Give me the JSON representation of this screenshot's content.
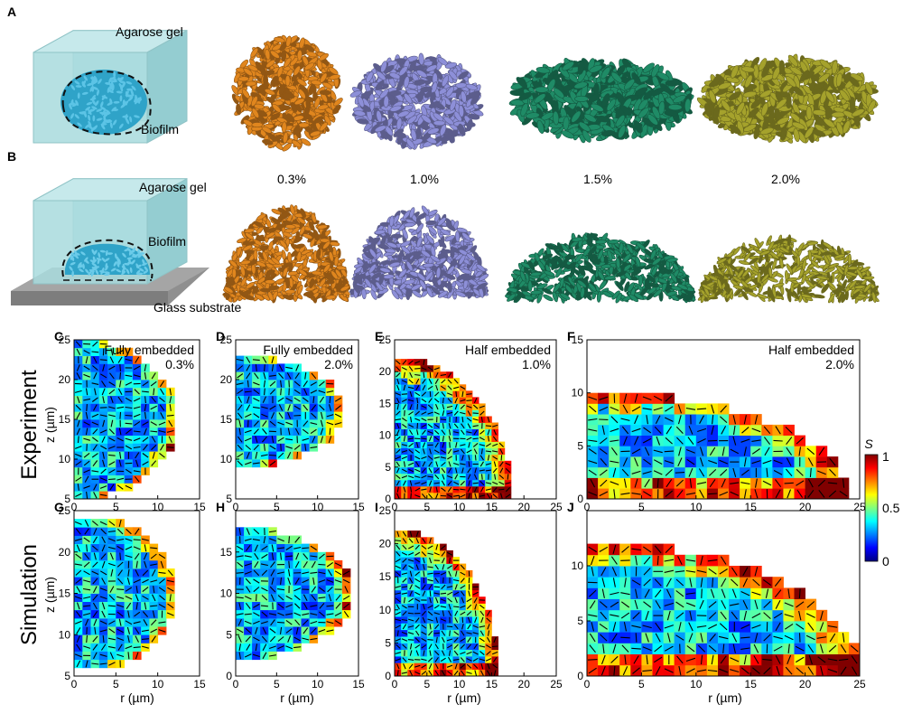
{
  "figure": {
    "panel_letters": [
      "A",
      "B",
      "C",
      "D",
      "E",
      "F",
      "G",
      "H",
      "I",
      "J"
    ],
    "labels": {
      "agarose_gel": "Agarose gel",
      "biofilm": "Biofilm",
      "glass_substrate": "Glass substrate"
    },
    "concentrations": [
      "0.3%",
      "1.0%",
      "1.5%",
      "2.0%"
    ],
    "colors": [
      "#e0861e",
      "#8d8fd8",
      "#1f8b66",
      "#a5a22c"
    ],
    "row_labels": {
      "top": "Experiment",
      "bottom": "Simulation"
    },
    "axis": {
      "r_label": "r (µm)",
      "z_label": "z (µm)"
    },
    "colorbar": {
      "title": "S",
      "ticks": [
        "0",
        "0.5",
        "1"
      ]
    },
    "panels": [
      {
        "id": "C",
        "l1": "Fully embedded",
        "l2": "0.3%",
        "xlim": [
          0,
          15
        ],
        "ylim": [
          5,
          25
        ],
        "xt": [
          0,
          5,
          10,
          15
        ],
        "yt": [
          5,
          10,
          15,
          20,
          25
        ]
      },
      {
        "id": "D",
        "l1": "Fully embedded",
        "l2": "2.0%",
        "xlim": [
          0,
          15
        ],
        "ylim": [
          5,
          25
        ],
        "xt": [
          0,
          5,
          10,
          15
        ],
        "yt": [
          5,
          10,
          15,
          20,
          25
        ]
      },
      {
        "id": "E",
        "l1": "Half embedded",
        "l2": "1.0%",
        "xlim": [
          0,
          25
        ],
        "ylim": [
          0,
          25
        ],
        "xt": [
          0,
          5,
          10,
          15,
          20,
          25
        ],
        "yt": [
          0,
          5,
          10,
          15,
          20,
          25
        ]
      },
      {
        "id": "F",
        "l1": "Half embedded",
        "l2": "2.0%",
        "xlim": [
          0,
          25
        ],
        "ylim": [
          0,
          15
        ],
        "xt": [
          0,
          5,
          10,
          15,
          20,
          25
        ],
        "yt": [
          0,
          5,
          10,
          15
        ]
      },
      {
        "id": "G",
        "l1": "",
        "l2": "",
        "xlim": [
          0,
          15
        ],
        "ylim": [
          5,
          25
        ],
        "xt": [
          0,
          5,
          10,
          15
        ],
        "yt": [
          5,
          10,
          15,
          20,
          25
        ]
      },
      {
        "id": "H",
        "l1": "",
        "l2": "",
        "xlim": [
          0,
          15
        ],
        "ylim": [
          0,
          20
        ],
        "xt": [
          0,
          5,
          10,
          15
        ],
        "yt": [
          0,
          5,
          10,
          15
        ]
      },
      {
        "id": "I",
        "l1": "",
        "l2": "",
        "xlim": [
          0,
          25
        ],
        "ylim": [
          0,
          25
        ],
        "xt": [
          0,
          5,
          10,
          15,
          20,
          25
        ],
        "yt": [
          0,
          5,
          10,
          15,
          20,
          25
        ]
      },
      {
        "id": "J",
        "l1": "",
        "l2": "",
        "xlim": [
          0,
          25
        ],
        "ylim": [
          0,
          15
        ],
        "xt": [
          0,
          5,
          10,
          15,
          20,
          25
        ],
        "yt": [
          0,
          5,
          10
        ]
      }
    ]
  }
}
